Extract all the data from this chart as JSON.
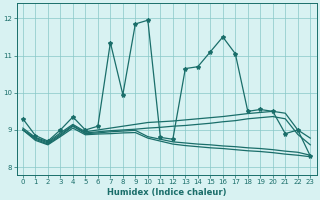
{
  "title": "",
  "xlabel": "Humidex (Indice chaleur)",
  "bg_color": "#d8f2f2",
  "line_color": "#1a6e6a",
  "xlim": [
    -0.5,
    23.5
  ],
  "ylim": [
    7.8,
    12.4
  ],
  "xticks": [
    0,
    1,
    2,
    3,
    4,
    5,
    6,
    7,
    8,
    9,
    10,
    11,
    12,
    13,
    14,
    15,
    16,
    17,
    18,
    19,
    20,
    21,
    22,
    23
  ],
  "yticks": [
    8,
    9,
    10,
    11,
    12
  ],
  "series": [
    {
      "x": [
        0,
        1,
        2,
        3,
        4,
        5,
        6,
        7,
        8,
        9,
        10,
        11,
        12,
        13,
        14,
        15,
        16,
        17,
        18,
        19,
        20,
        21,
        22,
        23
      ],
      "y": [
        9.3,
        8.85,
        8.7,
        9.0,
        9.35,
        9.0,
        9.1,
        11.35,
        9.95,
        11.85,
        11.95,
        8.8,
        8.75,
        10.65,
        10.7,
        11.1,
        11.5,
        11.05,
        9.5,
        9.55,
        9.5,
        8.9,
        9.0,
        8.3
      ],
      "marker": true,
      "lw": 0.9
    },
    {
      "x": [
        0,
        1,
        2,
        3,
        4,
        5,
        6,
        7,
        8,
        9,
        10,
        11,
        12,
        13,
        14,
        15,
        16,
        17,
        18,
        19,
        20,
        21,
        22,
        23
      ],
      "y": [
        9.05,
        8.8,
        8.68,
        8.92,
        9.15,
        8.95,
        9.0,
        9.05,
        9.1,
        9.15,
        9.2,
        9.22,
        9.24,
        9.27,
        9.3,
        9.33,
        9.36,
        9.4,
        9.44,
        9.47,
        9.5,
        9.45,
        9.0,
        8.78
      ],
      "marker": false,
      "lw": 0.9
    },
    {
      "x": [
        0,
        1,
        2,
        3,
        4,
        5,
        6,
        7,
        8,
        9,
        10,
        11,
        12,
        13,
        14,
        15,
        16,
        17,
        18,
        19,
        20,
        21,
        22,
        23
      ],
      "y": [
        9.0,
        8.78,
        8.65,
        8.88,
        9.12,
        8.92,
        8.95,
        8.98,
        9.0,
        9.02,
        9.05,
        9.07,
        9.1,
        9.12,
        9.15,
        9.18,
        9.22,
        9.25,
        9.3,
        9.33,
        9.36,
        9.3,
        8.88,
        8.6
      ],
      "marker": false,
      "lw": 0.9
    },
    {
      "x": [
        0,
        1,
        2,
        3,
        4,
        5,
        6,
        7,
        8,
        9,
        10,
        11,
        12,
        13,
        14,
        15,
        16,
        17,
        18,
        19,
        20,
        21,
        22,
        23
      ],
      "y": [
        9.0,
        8.75,
        8.62,
        8.85,
        9.1,
        8.9,
        8.92,
        8.95,
        8.97,
        8.99,
        8.82,
        8.75,
        8.68,
        8.65,
        8.62,
        8.6,
        8.57,
        8.55,
        8.52,
        8.5,
        8.47,
        8.43,
        8.4,
        8.32
      ],
      "marker": false,
      "lw": 0.9
    },
    {
      "x": [
        0,
        1,
        2,
        3,
        4,
        5,
        6,
        7,
        8,
        9,
        10,
        11,
        12,
        13,
        14,
        15,
        16,
        17,
        18,
        19,
        20,
        21,
        22,
        23
      ],
      "y": [
        9.0,
        8.72,
        8.6,
        8.82,
        9.05,
        8.87,
        8.89,
        8.9,
        8.92,
        8.93,
        8.78,
        8.7,
        8.62,
        8.58,
        8.55,
        8.52,
        8.5,
        8.47,
        8.44,
        8.42,
        8.39,
        8.35,
        8.32,
        8.28
      ],
      "marker": false,
      "lw": 0.9
    }
  ]
}
